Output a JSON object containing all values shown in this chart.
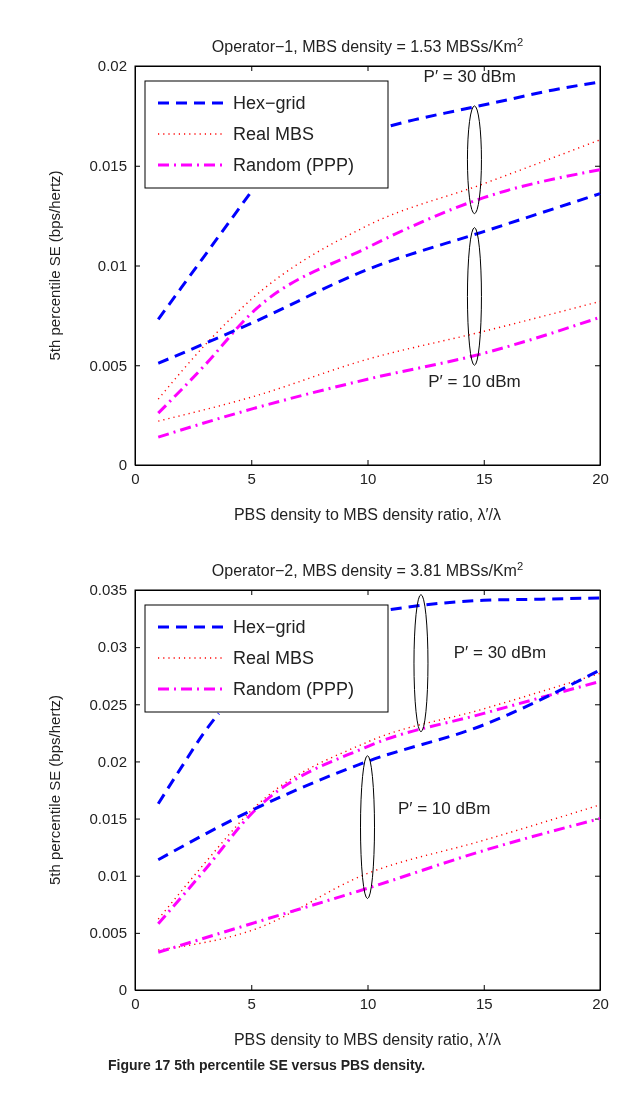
{
  "chart_data": [
    {
      "type": "line",
      "title": "Operator−1, MBS density = 1.53 MBSs/Km$^{2}$",
      "xlabel": "PBS density to MBS density ratio, λ′/λ",
      "ylabel": "5th percentile SE (bps/hertz)",
      "xlim": [
        0,
        20
      ],
      "ylim": [
        0,
        0.02
      ],
      "xticks": [
        0,
        5,
        10,
        15,
        20
      ],
      "yticks": [
        0,
        0.005,
        0.01,
        0.015,
        0.02
      ],
      "legend": "top left",
      "annotations": [
        "P′ = 30 dBm",
        "P′ = 10 dBm"
      ],
      "series": [
        {
          "name": "Hex−grid",
          "color": "#0000ff",
          "line_style": "dashed",
          "x": [
            1,
            2,
            3,
            4,
            5,
            8,
            11,
            12,
            14,
            16,
            18,
            20
          ],
          "values": [
            0.0073,
            0.0089,
            0.0105,
            0.0121,
            0.0137,
            null,
            0.017,
            0.0173,
            0.0178,
            0.0183,
            0.0188,
            0.0192
          ]
        },
        {
          "name": "Real MBS",
          "color": "#ff0000",
          "line_style": "dotted",
          "x": [
            1,
            3,
            5,
            10,
            15,
            20
          ],
          "values": [
            0.0033,
            0.006,
            0.0083,
            0.012,
            0.0141,
            0.0163
          ]
        },
        {
          "name": "Random (PPP)",
          "color": "#ff00ff",
          "line_style": "dashdot",
          "x": [
            1,
            3,
            5,
            10,
            15,
            20
          ],
          "values": [
            0.0026,
            0.005,
            0.0076,
            0.0109,
            0.0134,
            0.0148
          ]
        },
        {
          "color": "#0000ff",
          "line_style": "dashed",
          "x": [
            1,
            5,
            10,
            15,
            20
          ],
          "values": [
            0.0051,
            0.0071,
            0.0098,
            0.0117,
            0.0136
          ]
        },
        {
          "color": "#ff0000",
          "line_style": "dotted",
          "x": [
            1,
            5,
            10,
            15,
            20
          ],
          "values": [
            0.0022,
            0.0034,
            0.0053,
            0.0067,
            0.0082
          ]
        },
        {
          "color": "#ff00ff",
          "line_style": "dashdot",
          "x": [
            1,
            5,
            10,
            15,
            20
          ],
          "values": [
            0.0014,
            0.0028,
            0.0043,
            0.0056,
            0.0074
          ]
        }
      ]
    },
    {
      "type": "line",
      "title": "Operator−2, MBS density = 3.81 MBSs/Km$^{2}$",
      "xlabel": "PBS density to MBS density ratio, λ′/λ",
      "ylabel": "5th percentile SE (bps/hertz)",
      "xlim": [
        0,
        20
      ],
      "ylim": [
        0,
        0.035
      ],
      "xticks": [
        0,
        5,
        10,
        15,
        20
      ],
      "yticks": [
        0,
        0.005,
        0.01,
        0.015,
        0.02,
        0.025,
        0.03,
        0.035
      ],
      "legend": "top left",
      "annotations": [
        "P′ = 30 dBm",
        "P′ = 10 dBm",
        "Figure 17 5th percentile SE versus PBS density."
      ],
      "series": [
        {
          "name": "Hex−grid",
          "color": "#0000ff",
          "line_style": "dashed",
          "x": [
            1,
            2,
            3,
            3.6,
            7,
            11,
            12.5,
            15,
            17.5,
            20
          ],
          "values": [
            0.0163,
            0.0195,
            0.0226,
            0.0242,
            null,
            0.0333,
            0.0337,
            0.0341,
            0.0342,
            0.0343
          ]
        },
        {
          "name": "Real MBS",
          "color": "#ff0000",
          "line_style": "dotted",
          "x": [
            1,
            3,
            5,
            10,
            15,
            20
          ],
          "values": [
            0.0062,
            0.0111,
            0.0157,
            0.0217,
            0.0246,
            0.0277
          ]
        },
        {
          "name": "Random (PPP)",
          "color": "#ff00ff",
          "line_style": "dashdot",
          "x": [
            1,
            3,
            5,
            10,
            15,
            20
          ],
          "values": [
            0.0058,
            0.0105,
            0.0154,
            0.0213,
            0.0242,
            0.027
          ]
        },
        {
          "color": "#0000ff",
          "line_style": "dashed",
          "x": [
            1,
            5,
            10,
            15,
            20
          ],
          "values": [
            0.0114,
            0.0157,
            0.02,
            0.0232,
            0.028
          ]
        },
        {
          "color": "#ff0000",
          "line_style": "dotted",
          "x": [
            1,
            5,
            10,
            15,
            20
          ],
          "values": [
            0.0035,
            0.0052,
            0.0102,
            0.0131,
            0.0162
          ]
        },
        {
          "color": "#ff00ff",
          "line_style": "dashdot",
          "x": [
            1,
            5,
            10,
            15,
            20
          ],
          "values": [
            0.0033,
            0.0058,
            0.0089,
            0.0122,
            0.015
          ]
        }
      ]
    }
  ]
}
